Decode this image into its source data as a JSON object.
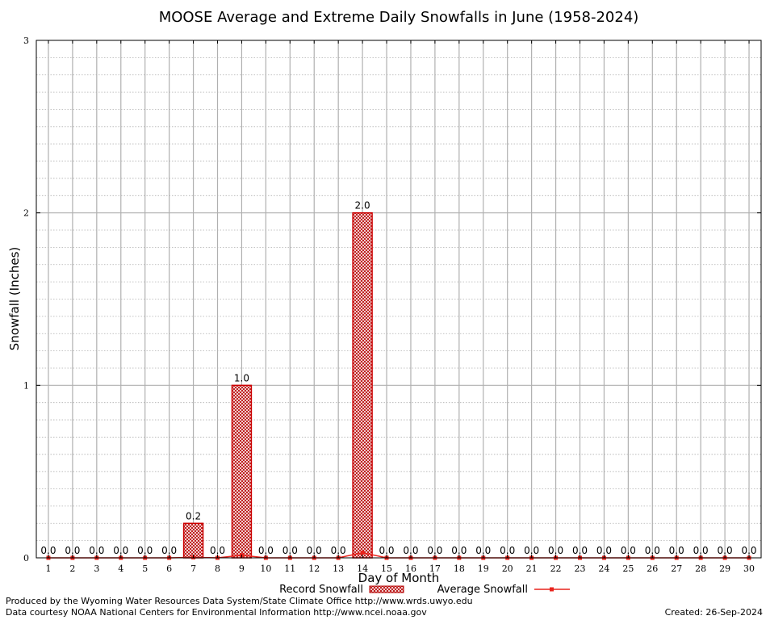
{
  "chart_data": {
    "type": "bar",
    "title": "MOOSE Average and Extreme Daily Snowfalls in June (1958-2024)",
    "xlabel": "Day of Month",
    "ylabel": "Snowfall (Inches)",
    "ylim": [
      0,
      3
    ],
    "yticks": [
      0,
      1,
      2,
      3
    ],
    "grid": true,
    "categories": [
      1,
      2,
      3,
      4,
      5,
      6,
      7,
      8,
      9,
      10,
      11,
      12,
      13,
      14,
      15,
      16,
      17,
      18,
      19,
      20,
      21,
      22,
      23,
      24,
      25,
      26,
      27,
      28,
      29,
      30
    ],
    "series": [
      {
        "name": "Record Snowfall",
        "kind": "bar",
        "values": [
          0,
          0,
          0,
          0,
          0,
          0,
          0.2,
          0,
          1.0,
          0,
          0,
          0,
          0,
          2.0,
          0,
          0,
          0,
          0,
          0,
          0,
          0,
          0,
          0,
          0,
          0,
          0,
          0,
          0,
          0,
          0
        ],
        "labels": [
          "0.0",
          "0.0",
          "0.0",
          "0.0",
          "0.0",
          "0.0",
          "0.2",
          "0.0",
          "1.0",
          "0.0",
          "0.0",
          "0.0",
          "0.0",
          "2.0",
          "0.0",
          "0.0",
          "0.0",
          "0.0",
          "0.0",
          "0.0",
          "0.0",
          "0.0",
          "0.0",
          "0.0",
          "0.0",
          "0.0",
          "0.0",
          "0.0",
          "0.0",
          "0.0"
        ]
      },
      {
        "name": "Average Snowfall",
        "kind": "line",
        "values": [
          0,
          0,
          0,
          0,
          0,
          0,
          0.003,
          0,
          0.015,
          0,
          0,
          0,
          0,
          0.03,
          0,
          0,
          0,
          0,
          0,
          0,
          0,
          0,
          0,
          0,
          0,
          0,
          0,
          0,
          0,
          0
        ]
      }
    ],
    "legend_position": "bottom",
    "colors": {
      "record_bar": "#cc0000",
      "average_line": "#e8231c",
      "grid": "#b0b0b0"
    }
  },
  "footer": {
    "left_line1": "Produced by the Wyoming Water Resources Data System/State Climate Office http://www.wrds.uwyo.edu",
    "left_line2": "Data courtesy NOAA National Centers for Environmental Information http://www.ncei.noaa.gov",
    "right": "Created:  26-Sep-2024"
  }
}
